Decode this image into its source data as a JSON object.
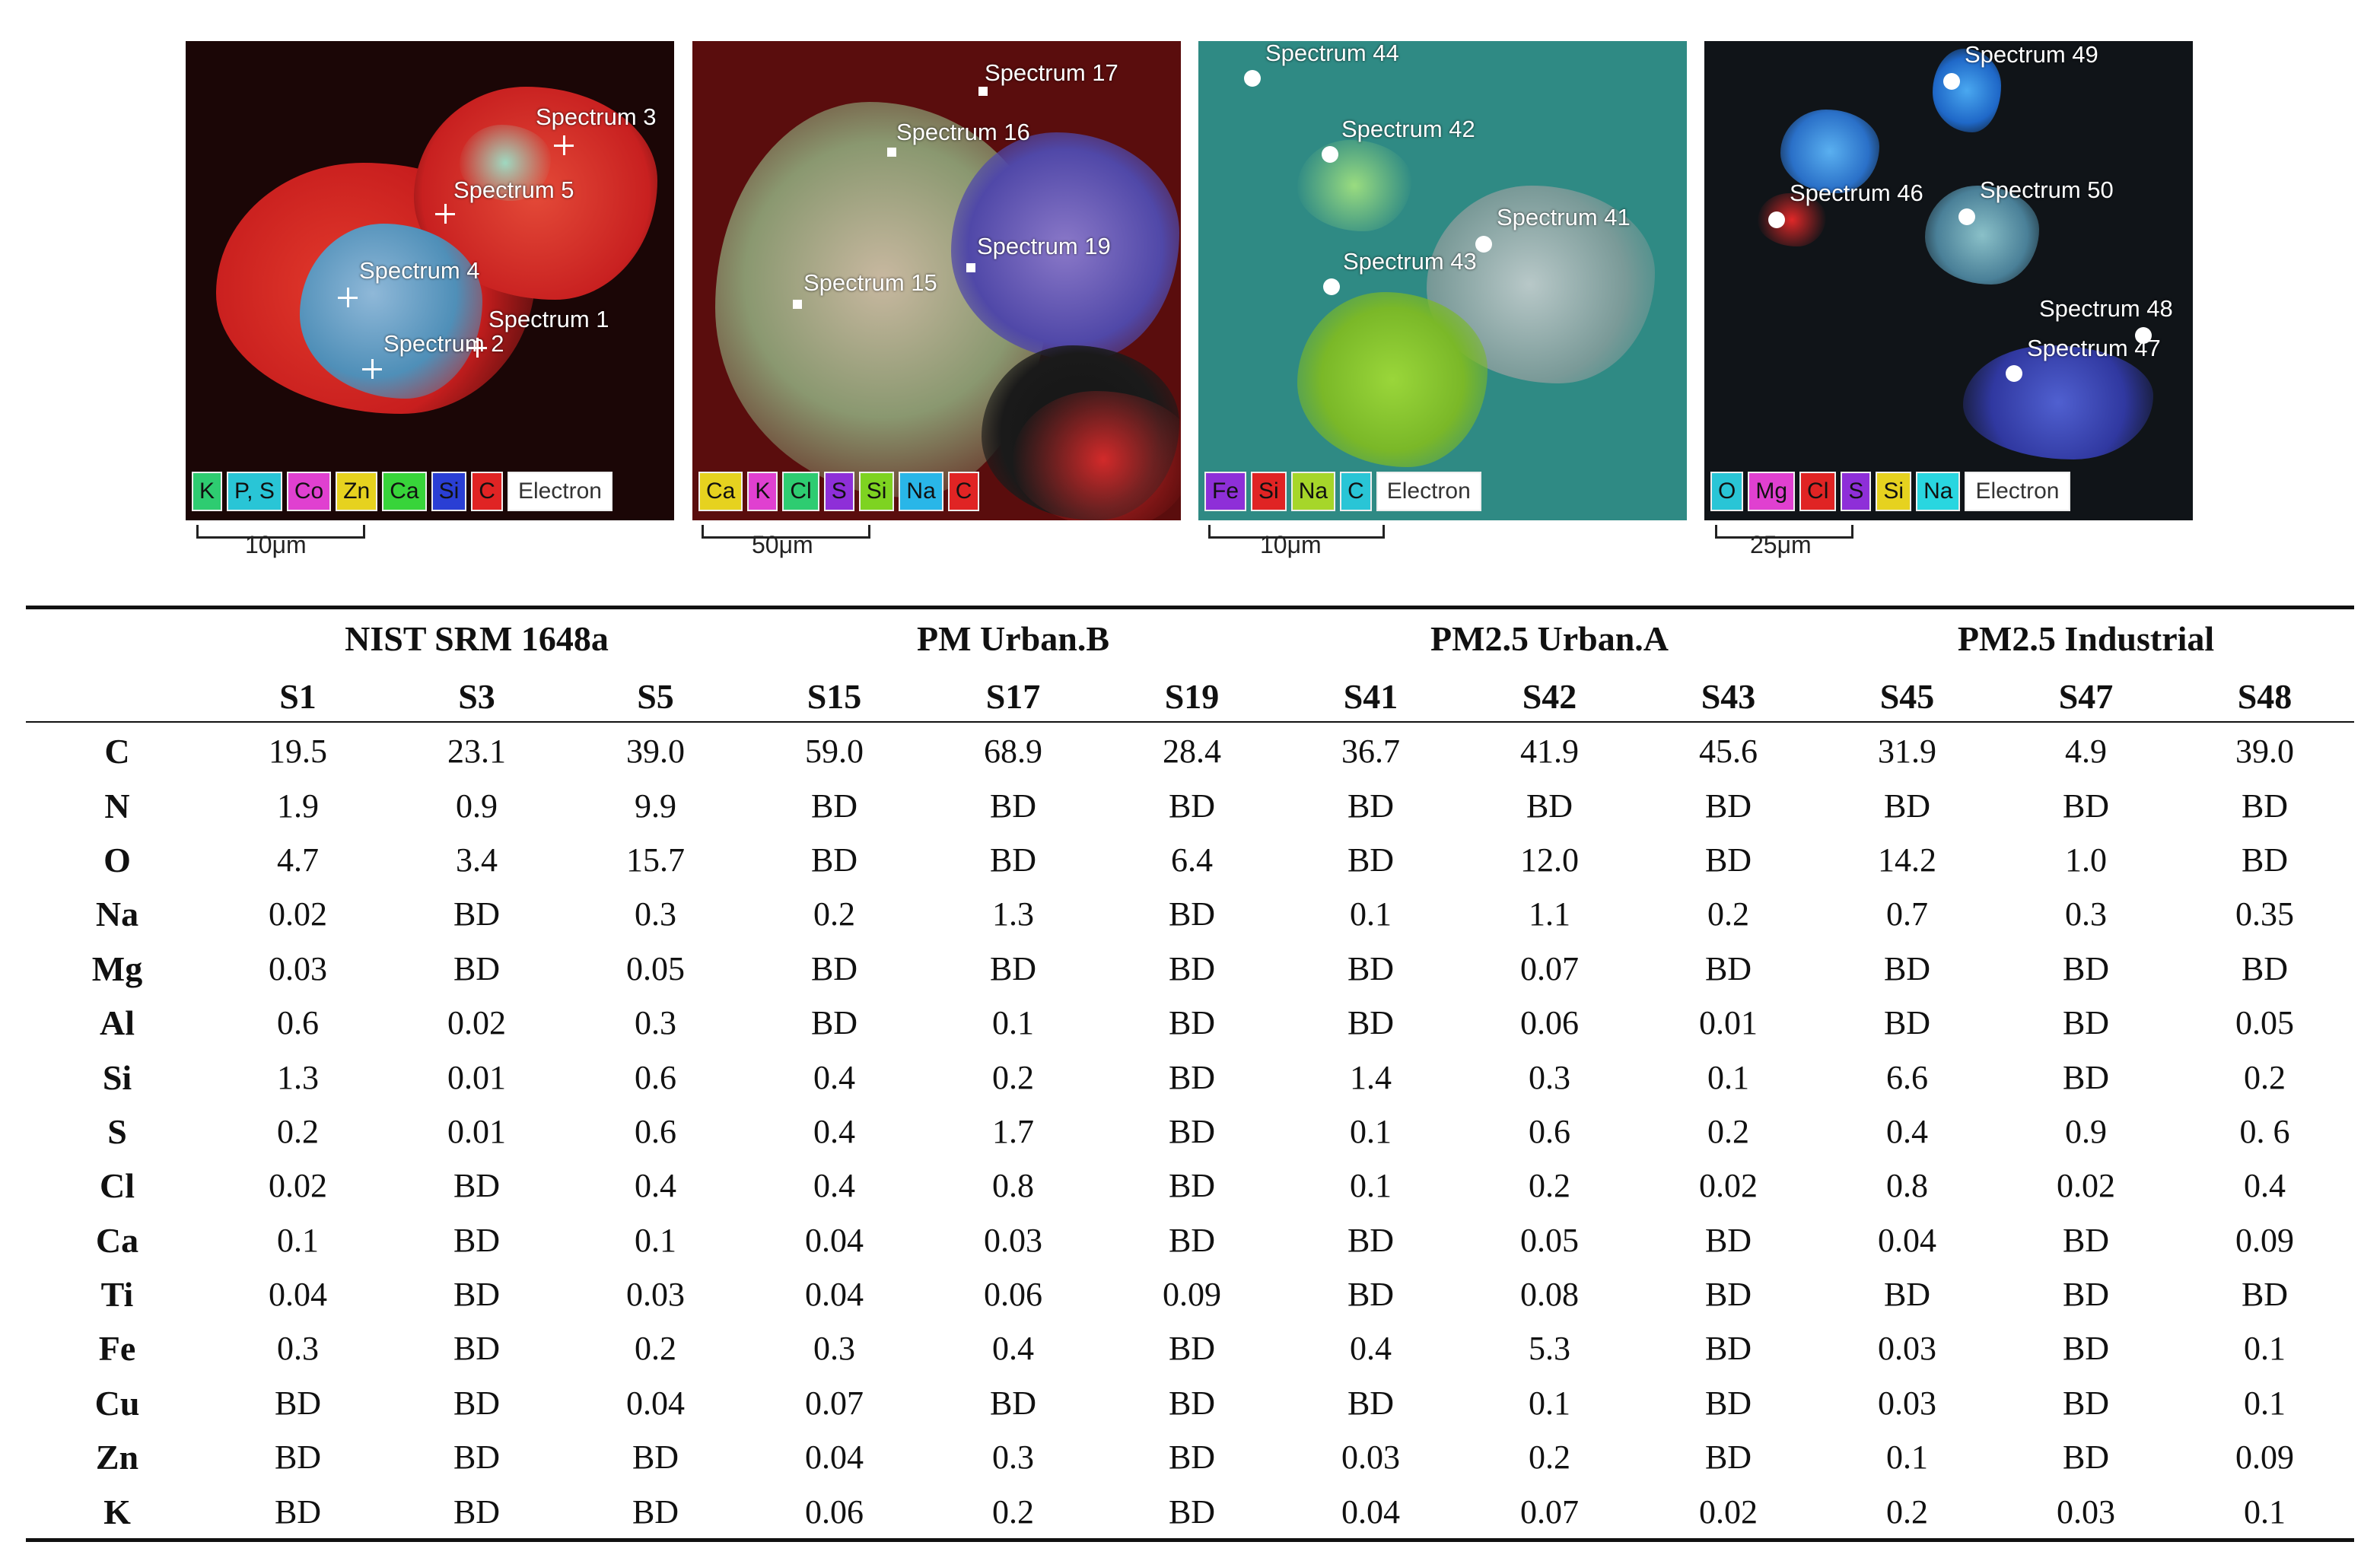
{
  "figure": {
    "panels": [
      {
        "spectra": [
          "Spectrum 3",
          "Spectrum 5",
          "Spectrum 4",
          "Spectrum 1",
          "Spectrum 2"
        ],
        "legend": [
          {
            "label": "K",
            "color": "#2ecc71"
          },
          {
            "label": "P, S",
            "color": "#29c5d6"
          },
          {
            "label": "Co",
            "color": "#e040d0"
          },
          {
            "label": "Zn",
            "color": "#e6d21f"
          },
          {
            "label": "Ca",
            "color": "#38d43a"
          },
          {
            "label": "Si",
            "color": "#2a3fd4"
          },
          {
            "label": "C",
            "color": "#e02424"
          },
          {
            "label": "Electron",
            "color": "#ffffff"
          }
        ],
        "scale": "10μm"
      },
      {
        "spectra": [
          "Spectrum 17",
          "Spectrum 16",
          "Spectrum 19",
          "Spectrum 15"
        ],
        "legend": [
          {
            "label": "Ca",
            "color": "#e6d21f"
          },
          {
            "label": "K",
            "color": "#e040d0"
          },
          {
            "label": "Cl",
            "color": "#2ecc71"
          },
          {
            "label": "S",
            "color": "#8e2fd8"
          },
          {
            "label": "Si",
            "color": "#7ed321"
          },
          {
            "label": "Na",
            "color": "#29b6e8"
          },
          {
            "label": "C",
            "color": "#e02424"
          }
        ],
        "scale": "50μm"
      },
      {
        "spectra": [
          "Spectrum 44",
          "Spectrum 42",
          "Spectrum 41",
          "Spectrum 43"
        ],
        "legend": [
          {
            "label": "Fe",
            "color": "#8e2fd8"
          },
          {
            "label": "Si",
            "color": "#e02424"
          },
          {
            "label": "Na",
            "color": "#a6d62a"
          },
          {
            "label": "C",
            "color": "#29c5d6"
          },
          {
            "label": "Electron",
            "color": "#ffffff"
          }
        ],
        "scale": "10μm"
      },
      {
        "spectra": [
          "Spectrum 49",
          "Spectrum 46",
          "Spectrum 50",
          "Spectrum 48",
          "Spectrum 47"
        ],
        "legend": [
          {
            "label": "O",
            "color": "#29c5d6"
          },
          {
            "label": "Mg",
            "color": "#e040d0"
          },
          {
            "label": "Cl",
            "color": "#e02424"
          },
          {
            "label": "S",
            "color": "#8e2fd8"
          },
          {
            "label": "Si",
            "color": "#e6d21f"
          },
          {
            "label": "Na",
            "color": "#29d6e0"
          },
          {
            "label": "Electron",
            "color": "#ffffff"
          }
        ],
        "scale": "25μm"
      }
    ]
  },
  "table": {
    "groups": [
      {
        "name": "NIST SRM 1648a",
        "span": 3
      },
      {
        "name": "PM Urban.B",
        "span": 3
      },
      {
        "name": "PM2.5 Urban.A",
        "span": 3
      },
      {
        "name": "PM2.5 Industrial",
        "span": 3
      }
    ],
    "samples": [
      "S1",
      "S3",
      "S5",
      "S15",
      "S17",
      "S19",
      "S41",
      "S42",
      "S43",
      "S45",
      "S47",
      "S48"
    ],
    "rows": [
      {
        "element": "C",
        "values": [
          "19.5",
          "23.1",
          "39.0",
          "59.0",
          "68.9",
          "28.4",
          "36.7",
          "41.9",
          "45.6",
          "31.9",
          "4.9",
          "39.0"
        ]
      },
      {
        "element": "N",
        "values": [
          "1.9",
          "0.9",
          "9.9",
          "BD",
          "BD",
          "BD",
          "BD",
          "BD",
          "BD",
          "BD",
          "BD",
          "BD"
        ]
      },
      {
        "element": "O",
        "values": [
          "4.7",
          "3.4",
          "15.7",
          "BD",
          "BD",
          "6.4",
          "BD",
          "12.0",
          "BD",
          "14.2",
          "1.0",
          "BD"
        ]
      },
      {
        "element": "Na",
        "values": [
          "0.02",
          "BD",
          "0.3",
          "0.2",
          "1.3",
          "BD",
          "0.1",
          "1.1",
          "0.2",
          "0.7",
          "0.3",
          "0.35"
        ]
      },
      {
        "element": "Mg",
        "values": [
          "0.03",
          "BD",
          "0.05",
          "BD",
          "BD",
          "BD",
          "BD",
          "0.07",
          "BD",
          "BD",
          "BD",
          "BD"
        ]
      },
      {
        "element": "Al",
        "values": [
          "0.6",
          "0.02",
          "0.3",
          "BD",
          "0.1",
          "BD",
          "BD",
          "0.06",
          "0.01",
          "BD",
          "BD",
          "0.05"
        ]
      },
      {
        "element": "Si",
        "values": [
          "1.3",
          "0.01",
          "0.6",
          "0.4",
          "0.2",
          "BD",
          "1.4",
          "0.3",
          "0.1",
          "6.6",
          "BD",
          "0.2"
        ]
      },
      {
        "element": "S",
        "values": [
          "0.2",
          "0.01",
          "0.6",
          "0.4",
          "1.7",
          "BD",
          "0.1",
          "0.6",
          "0.2",
          "0.4",
          "0.9",
          "0. 6"
        ]
      },
      {
        "element": "Cl",
        "values": [
          "0.02",
          "BD",
          "0.4",
          "0.4",
          "0.8",
          "BD",
          "0.1",
          "0.2",
          "0.02",
          "0.8",
          "0.02",
          "0.4"
        ]
      },
      {
        "element": "Ca",
        "values": [
          "0.1",
          "BD",
          "0.1",
          "0.04",
          "0.03",
          "BD",
          "BD",
          "0.05",
          "BD",
          "0.04",
          "BD",
          "0.09"
        ]
      },
      {
        "element": "Ti",
        "values": [
          "0.04",
          "BD",
          "0.03",
          "0.04",
          "0.06",
          "0.09",
          "BD",
          "0.08",
          "BD",
          "BD",
          "BD",
          "BD"
        ]
      },
      {
        "element": "Fe",
        "values": [
          "0.3",
          "BD",
          "0.2",
          "0.3",
          "0.4",
          "BD",
          "0.4",
          "5.3",
          "BD",
          "0.03",
          "BD",
          "0.1"
        ]
      },
      {
        "element": "Cu",
        "values": [
          "BD",
          "BD",
          "0.04",
          "0.07",
          "BD",
          "BD",
          "BD",
          "0.1",
          "BD",
          "0.03",
          "BD",
          "0.1"
        ]
      },
      {
        "element": "Zn",
        "values": [
          "BD",
          "BD",
          "BD",
          "0.04",
          "0.3",
          "BD",
          "0.03",
          "0.2",
          "BD",
          "0.1",
          "BD",
          "0.09"
        ]
      },
      {
        "element": "K",
        "values": [
          "BD",
          "BD",
          "BD",
          "0.06",
          "0.2",
          "BD",
          "0.04",
          "0.07",
          "0.02",
          "0.2",
          "0.03",
          "0.1"
        ]
      }
    ]
  }
}
